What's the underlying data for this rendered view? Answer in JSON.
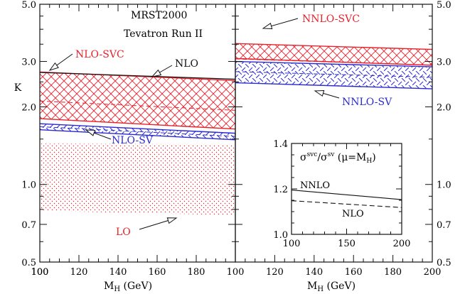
{
  "chart_data": [
    {
      "type": "area",
      "panel": "NLO",
      "xlabel": "M",
      "xlabel_sub": "H",
      "xlabel_unit": " (GeV)",
      "ylabel": "K",
      "xlim": [
        100,
        200
      ],
      "ylim": [
        0.5,
        5.0
      ],
      "yscale": "log",
      "xticks": [
        "100",
        "120",
        "140",
        "160",
        "180"
      ],
      "yticks": [
        {
          "value": 0.5,
          "label": "0.5"
        },
        {
          "value": 0.7,
          "label": "0.7"
        },
        {
          "value": 1.0,
          "label": "1.0"
        },
        {
          "value": 2.0,
          "label": "2.0"
        },
        {
          "value": 3.0,
          "label": "3.0"
        },
        {
          "value": 5.0,
          "label": "5.0"
        }
      ],
      "annotations": [
        "MRST2000",
        "Tevatron Run II"
      ],
      "x": [
        100,
        200
      ],
      "series": [
        {
          "name": "NLO-SVC",
          "color": "#e8202a",
          "pattern": "cross",
          "upper": [
            2.73,
            2.53
          ],
          "lower": [
            1.8,
            1.64
          ]
        },
        {
          "name": "NLO",
          "color": "#111111",
          "pattern": "line",
          "values": [
            2.72,
            2.56
          ],
          "arrow": true
        },
        {
          "name": "NLO-SV",
          "color": "#2a2ad0",
          "pattern": "dash",
          "upper": [
            1.72,
            1.58
          ],
          "lower": [
            1.63,
            1.49
          ]
        },
        {
          "name": "LO",
          "color": "#e8202a",
          "pattern": "dots",
          "upper": [
            1.44,
            1.43
          ],
          "lower": [
            0.79,
            0.76
          ]
        }
      ]
    },
    {
      "type": "area",
      "panel": "NNLO",
      "xlabel": "M",
      "xlabel_sub": "H",
      "xlabel_unit": " (GeV)",
      "xlim": [
        100,
        200
      ],
      "ylim": [
        0.5,
        5.0
      ],
      "yscale": "log",
      "xticks": [
        "120",
        "140",
        "160",
        "180",
        "200"
      ],
      "yticks": [
        {
          "value": 0.5,
          "label": "0.5"
        },
        {
          "value": 0.7,
          "label": "0.7"
        },
        {
          "value": 1.0,
          "label": "1.0"
        },
        {
          "value": 2.0,
          "label": "2.0"
        },
        {
          "value": 3.0,
          "label": "3.0"
        },
        {
          "value": 5.0,
          "label": "5.0"
        }
      ],
      "x": [
        100,
        200
      ],
      "series": [
        {
          "name": "NNLO-SVC",
          "color": "#e8202a",
          "pattern": "cross",
          "upper": [
            3.52,
            3.34
          ],
          "lower": [
            3.08,
            2.9
          ]
        },
        {
          "name": "NNLO-SV",
          "color": "#2a2ad0",
          "pattern": "dash",
          "upper": [
            3.0,
            2.86
          ],
          "lower": [
            2.48,
            2.35
          ]
        }
      ],
      "inset": {
        "type": "line",
        "title": "σsvc/σsv (μ=MH)",
        "xlim": [
          100,
          200
        ],
        "ylim": [
          1.0,
          1.4
        ],
        "xticks": [
          "100",
          "150",
          "200"
        ],
        "yticks": [
          "1.0",
          "1.2",
          "1.4"
        ],
        "x": [
          100,
          200
        ],
        "series": [
          {
            "name": "NNLO",
            "style": "solid",
            "values": [
              1.195,
              1.153
            ]
          },
          {
            "name": "NLO",
            "style": "dashed",
            "values": [
              1.148,
              1.118
            ]
          }
        ]
      }
    }
  ],
  "colors": {
    "red": "#e8202a",
    "blue": "#2a2ad0",
    "black": "#111111"
  }
}
